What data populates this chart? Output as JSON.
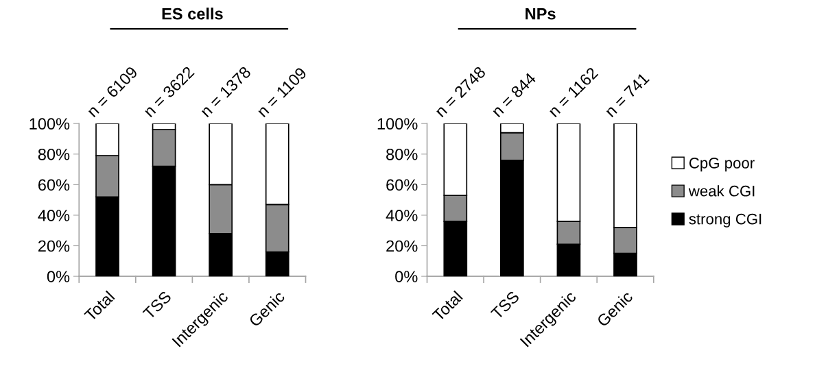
{
  "chart_data": [
    {
      "type": "bar",
      "title": "ES cells",
      "stacked": true,
      "categories": [
        "Total",
        "TSS",
        "Intergenic",
        "Genic"
      ],
      "series": [
        {
          "color": "#000000",
          "values": [
            52,
            72,
            28,
            16
          ]
        },
        {
          "color": "#8c8c8c",
          "values": [
            27,
            24,
            32,
            31
          ]
        },
        {
          "color": "#ffffff",
          "values": [
            21,
            4,
            40,
            53
          ]
        }
      ],
      "ylim": [
        0,
        100
      ],
      "yticks": [
        {
          "value": 0,
          "label": "0%"
        },
        {
          "value": 20,
          "label": "20%"
        },
        {
          "value": 40,
          "label": "40%"
        },
        {
          "value": 60,
          "label": "60%"
        },
        {
          "value": 80,
          "label": "80%"
        },
        {
          "value": 100,
          "label": "100%"
        }
      ],
      "annotations": [
        "n = 6109",
        "n = 3622",
        "n = 1378",
        "n = 1109"
      ],
      "grid": false,
      "legend": false
    },
    {
      "type": "bar",
      "title": "NPs",
      "stacked": true,
      "categories": [
        "Total",
        "TSS",
        "Intergenic",
        "Genic"
      ],
      "series": [
        {
          "name": "strong CGI",
          "color": "#000000",
          "values": [
            36,
            76,
            21,
            15
          ]
        },
        {
          "name": "weak CGI",
          "color": "#8c8c8c",
          "values": [
            17,
            18,
            15,
            17
          ]
        },
        {
          "name": "CpG poor",
          "color": "#ffffff",
          "values": [
            47,
            6,
            64,
            68
          ]
        }
      ],
      "ylim": [
        0,
        100
      ],
      "yticks": [
        {
          "value": 0,
          "label": "0%"
        },
        {
          "value": 20,
          "label": "20%"
        },
        {
          "value": 40,
          "label": "40%"
        },
        {
          "value": 60,
          "label": "60%"
        },
        {
          "value": 80,
          "label": "80%"
        },
        {
          "value": 100,
          "label": "100%"
        }
      ],
      "annotations": [
        "n = 2748",
        "n = 844",
        "n = 1162",
        "n = 741"
      ],
      "grid": false,
      "legend": "right"
    }
  ]
}
